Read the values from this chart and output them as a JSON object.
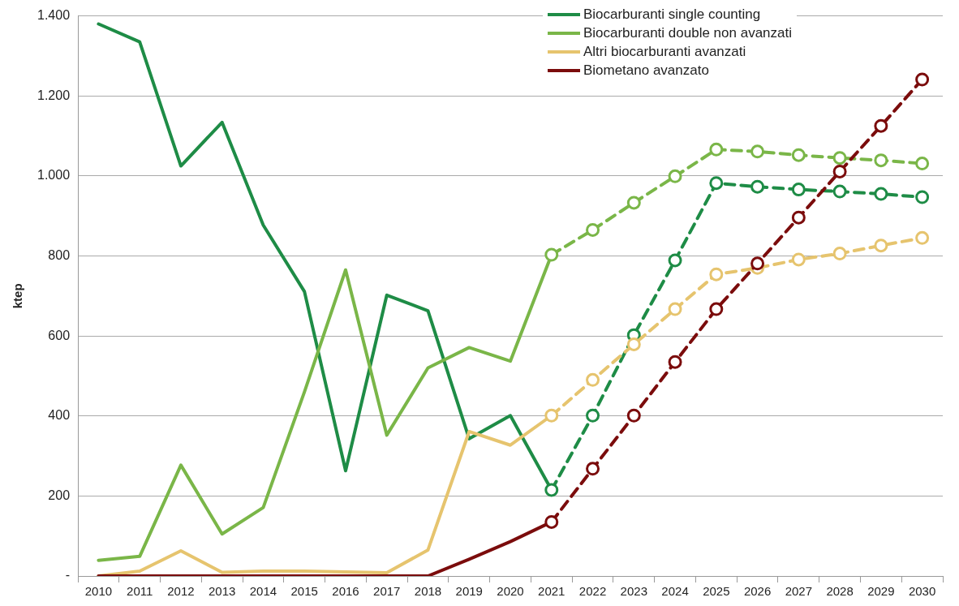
{
  "chart_data": {
    "type": "line",
    "ylabel": "ktep",
    "categories": [
      "2010",
      "2011",
      "2012",
      "2013",
      "2014",
      "2015",
      "2016",
      "2017",
      "2018",
      "2019",
      "2020",
      "2021",
      "2022",
      "2023",
      "2024",
      "2025",
      "2026",
      "2027",
      "2028",
      "2029",
      "2030"
    ],
    "ylim": [
      0,
      1400
    ],
    "yticks": [
      {
        "value": 0,
        "label": "-"
      },
      200,
      400,
      600,
      800,
      {
        "value": 1000,
        "label": "1.000"
      },
      {
        "value": 1200,
        "label": "1.200"
      },
      {
        "value": 1400,
        "label": "1.400"
      }
    ],
    "grid": "y",
    "legend": "top right",
    "series": [
      {
        "name": "Biocarburanti single counting",
        "color": "#1e8c46",
        "line_style": "solid",
        "marker": "none",
        "values": [
          1380,
          1335,
          1025,
          1134,
          877,
          711,
          263,
          702,
          663,
          343,
          401,
          215,
          null,
          null,
          null,
          null,
          null,
          null,
          null,
          null,
          null
        ]
      },
      {
        "name": "Biocarburanti double non avanzati",
        "color": "#7ab648",
        "line_style": "solid",
        "marker": "none",
        "values": [
          39,
          49,
          277,
          105,
          171,
          460,
          765,
          352,
          520,
          571,
          537,
          803,
          null,
          null,
          null,
          null,
          null,
          null,
          null,
          null,
          null
        ]
      },
      {
        "name": "Altri biocarburanti avanzati",
        "color": "#e6c46e",
        "line_style": "solid",
        "marker": "none",
        "values": [
          0,
          12,
          63,
          9,
          12,
          12,
          10,
          8,
          65,
          361,
          327,
          401,
          null,
          null,
          null,
          null,
          null,
          null,
          null,
          null,
          null
        ]
      },
      {
        "name": "Biometano avanzato",
        "color": "#7b0c0c",
        "line_style": "solid",
        "marker": "none",
        "values": [
          0,
          0,
          0,
          0,
          0,
          0,
          0,
          0,
          0,
          42,
          86,
          135,
          null,
          null,
          null,
          null,
          null,
          null,
          null,
          null,
          null
        ]
      },
      {
        "color": "#1e8c46",
        "line_style": "dashed",
        "marker": "circle",
        "values": [
          null,
          null,
          null,
          null,
          null,
          null,
          null,
          null,
          null,
          null,
          null,
          215,
          401,
          602,
          789,
          982,
          973,
          966,
          961,
          955,
          947
        ]
      },
      {
        "color": "#7ab648",
        "line_style": "dashed",
        "marker": "circle",
        "values": [
          null,
          null,
          null,
          null,
          null,
          null,
          null,
          null,
          null,
          null,
          null,
          803,
          865,
          933,
          999,
          1066,
          1061,
          1052,
          1045,
          1039,
          1031
        ]
      },
      {
        "color": "#e6c46e",
        "line_style": "dashed",
        "marker": "circle",
        "values": [
          null,
          null,
          null,
          null,
          null,
          null,
          null,
          null,
          null,
          null,
          null,
          401,
          490,
          579,
          667,
          754,
          770,
          791,
          806,
          826,
          845
        ]
      },
      {
        "color": "#7b0c0c",
        "line_style": "dashed",
        "marker": "circle",
        "values": [
          null,
          null,
          null,
          null,
          null,
          null,
          null,
          null,
          null,
          null,
          null,
          135,
          268,
          401,
          535,
          667,
          781,
          896,
          1011,
          1125,
          1241
        ]
      }
    ]
  }
}
